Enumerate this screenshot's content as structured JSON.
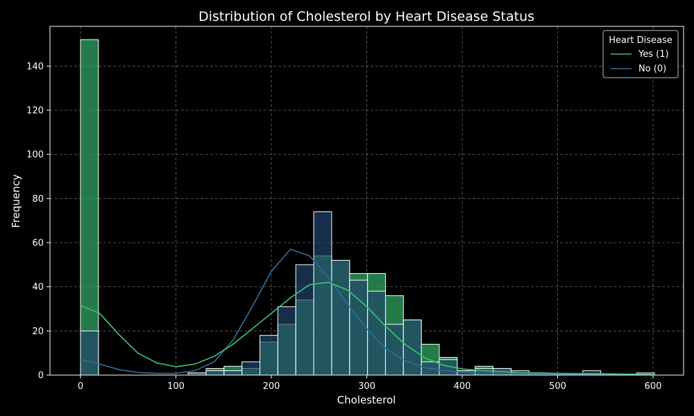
{
  "chart_data": {
    "type": "histogram",
    "title": "Distribution of Cholesterol by Heart Disease Status",
    "xlabel": "Cholesterol",
    "ylabel": "Frequency",
    "xlim": [
      -32,
      632
    ],
    "ylim": [
      0,
      158
    ],
    "x_ticks": [
      0,
      100,
      200,
      300,
      400,
      500,
      600
    ],
    "y_ticks": [
      0,
      20,
      40,
      60,
      80,
      100,
      120,
      140
    ],
    "grid": true,
    "bin_width": 18.8,
    "bin_start": 0,
    "legend": {
      "title": "Heart Disease",
      "position": "top-right"
    },
    "series": [
      {
        "name": "Yes (1)",
        "color": "#2e9e5e",
        "line_color": "#3dbf75",
        "counts": [
          152,
          0,
          0,
          0,
          0,
          0,
          1,
          3,
          4,
          3,
          15,
          23,
          34,
          54,
          52,
          46,
          46,
          36,
          25,
          14,
          8,
          2,
          4,
          3,
          1,
          0,
          0,
          0,
          0,
          0,
          0,
          0
        ],
        "kde": [
          [
            0,
            31.5
          ],
          [
            20,
            28
          ],
          [
            40,
            18.5
          ],
          [
            60,
            10
          ],
          [
            80,
            5.5
          ],
          [
            100,
            3.8
          ],
          [
            120,
            5
          ],
          [
            140,
            8.5
          ],
          [
            160,
            14
          ],
          [
            180,
            21
          ],
          [
            200,
            28
          ],
          [
            220,
            35
          ],
          [
            240,
            41
          ],
          [
            260,
            42
          ],
          [
            280,
            38.5
          ],
          [
            300,
            31
          ],
          [
            320,
            22
          ],
          [
            340,
            14
          ],
          [
            360,
            8
          ],
          [
            380,
            4.5
          ],
          [
            400,
            2.8
          ],
          [
            420,
            2
          ],
          [
            440,
            1.6
          ],
          [
            460,
            1.2
          ],
          [
            500,
            0.8
          ],
          [
            560,
            0.5
          ],
          [
            600,
            0.3
          ]
        ]
      },
      {
        "name": "No (0)",
        "color": "#21446b",
        "line_color": "#2f6b99",
        "counts": [
          20,
          0,
          0,
          0,
          0,
          0,
          1,
          2,
          2,
          6,
          18,
          31,
          50,
          74,
          52,
          43,
          38,
          23,
          25,
          6,
          7,
          2,
          3,
          3,
          2,
          1,
          0,
          0,
          2,
          0,
          0,
          1
        ],
        "kde": [
          [
            0,
            7
          ],
          [
            20,
            5
          ],
          [
            40,
            2.5
          ],
          [
            60,
            1.2
          ],
          [
            80,
            0.8
          ],
          [
            100,
            0.8
          ],
          [
            120,
            2
          ],
          [
            140,
            6
          ],
          [
            160,
            16
          ],
          [
            180,
            31
          ],
          [
            200,
            47
          ],
          [
            220,
            57
          ],
          [
            240,
            54
          ],
          [
            260,
            44
          ],
          [
            280,
            32
          ],
          [
            300,
            21
          ],
          [
            320,
            12
          ],
          [
            340,
            6.5
          ],
          [
            360,
            3.5
          ],
          [
            380,
            2
          ],
          [
            400,
            1.3
          ],
          [
            420,
            0.8
          ],
          [
            460,
            0.6
          ],
          [
            500,
            0.4
          ],
          [
            560,
            0.3
          ],
          [
            600,
            0.2
          ]
        ]
      }
    ]
  }
}
